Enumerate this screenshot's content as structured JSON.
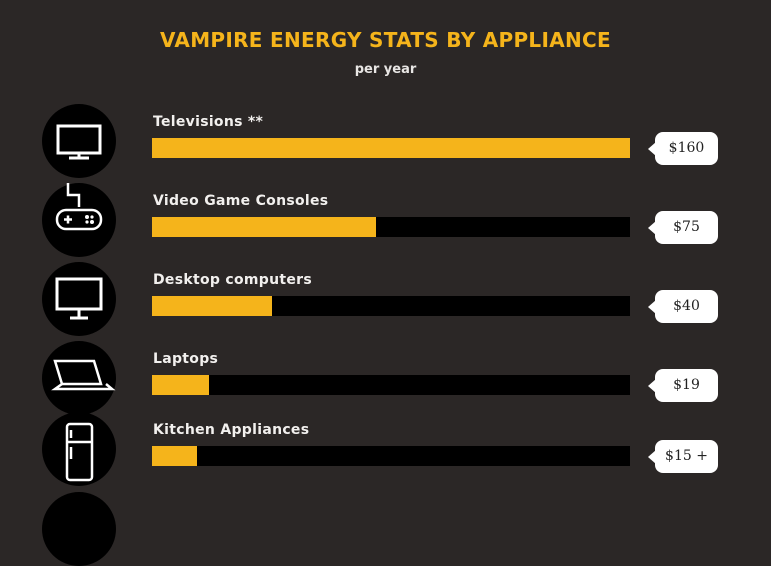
{
  "chart_data": {
    "type": "bar",
    "orientation": "horizontal",
    "title": "VAMPIRE ENERGY STATS BY APPLIANCE",
    "subtitle": "per year",
    "xlim": [
      0,
      160
    ],
    "categories": [
      "Televisions **",
      "Video Game Consoles",
      "Desktop computers",
      "Laptops",
      "Kitchen Appliances"
    ],
    "values": [
      160,
      75,
      40,
      19,
      15
    ],
    "value_labels": [
      "$160",
      "$75",
      "$40",
      "$19",
      "$15 +"
    ],
    "icons": [
      "television-icon",
      "game-controller-icon",
      "desktop-monitor-icon",
      "laptop-icon",
      "refrigerator-icon"
    ],
    "colors": {
      "bar": "#f5b41b",
      "track": "#000000",
      "background": "#2b2726",
      "title": "#f5b41b"
    }
  }
}
